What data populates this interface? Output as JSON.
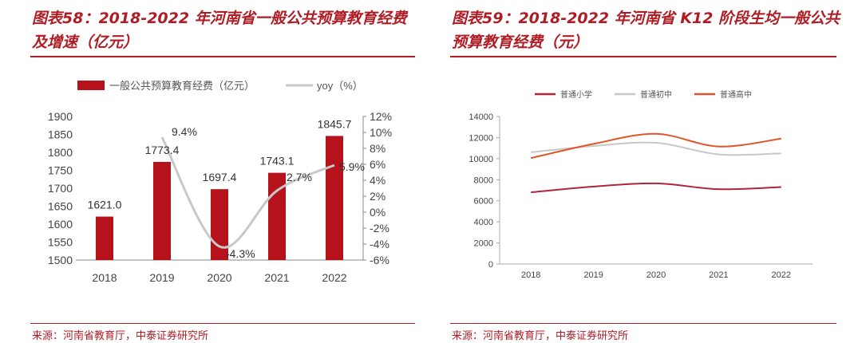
{
  "left": {
    "title": "图表58：2018-2022 年河南省一般公共预算教育经费及增速（亿元）",
    "source": "来源：河南省教育厅，中泰证券研究所"
  },
  "right": {
    "title": "图表59：2018-2022 年河南省 K12 阶段生均一般公共预算教育经费（元）",
    "source": "来源：河南省教育厅，中泰证券研究所"
  },
  "colors": {
    "accent": "#b01c24",
    "bar": "#b5121b",
    "yoy": "#c8c8c8",
    "primary": "#b0243c",
    "junior": "#c8c8c8",
    "senior": "#e0562a"
  },
  "chart_data": [
    {
      "type": "bar",
      "categories": [
        "2018",
        "2019",
        "2020",
        "2021",
        "2022"
      ],
      "series": [
        {
          "name": "一般公共预算教育经费（亿元）",
          "kind": "bar",
          "axis": "left",
          "values": [
            1621.0,
            1773.4,
            1697.4,
            1743.1,
            1845.7
          ],
          "labels": [
            "1621.0",
            "1773.4",
            "1697.4",
            "1743.1",
            "1845.7"
          ]
        },
        {
          "name": "yoy（%）",
          "kind": "line",
          "axis": "right",
          "values": [
            null,
            9.4,
            -4.3,
            2.7,
            5.9
          ],
          "labels": [
            "",
            "9.4%",
            "-4.3%",
            "2.7%",
            "5.9%"
          ]
        }
      ],
      "ylim": [
        1500,
        1900
      ],
      "yticks": [
        "1500",
        "1550",
        "1600",
        "1650",
        "1700",
        "1750",
        "1800",
        "1850",
        "1900"
      ],
      "y2lim": [
        -6,
        12
      ],
      "y2ticks": [
        "-6%",
        "-4%",
        "-2%",
        "0%",
        "2%",
        "4%",
        "6%",
        "8%",
        "10%",
        "12%"
      ],
      "legend": "top"
    },
    {
      "type": "line",
      "categories": [
        "2018",
        "2019",
        "2020",
        "2021",
        "2022"
      ],
      "series": [
        {
          "name": "普通小学",
          "values": [
            6800,
            7350,
            7650,
            7100,
            7300
          ]
        },
        {
          "name": "普通初中",
          "values": [
            10600,
            11200,
            11500,
            10400,
            10500
          ]
        },
        {
          "name": "普通高中",
          "values": [
            10050,
            11400,
            12350,
            11150,
            11900
          ]
        }
      ],
      "ylim": [
        0,
        14000
      ],
      "yticks": [
        "0",
        "2000",
        "4000",
        "6000",
        "8000",
        "10000",
        "12000",
        "14000"
      ],
      "legend": "top"
    }
  ]
}
